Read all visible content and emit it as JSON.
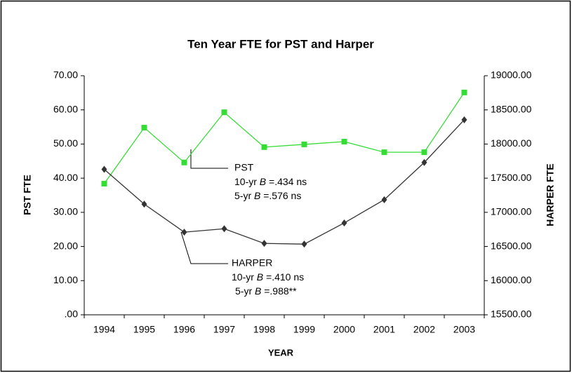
{
  "chart_data": {
    "type": "line",
    "title": "Ten Year FTE for PST and Harper",
    "xlabel": "YEAR",
    "ylabel": "PST FTE",
    "y2label": "HARPER FTE",
    "categories": [
      "1994",
      "1995",
      "1996",
      "1997",
      "1998",
      "1999",
      "2000",
      "2001",
      "2002",
      "2003"
    ],
    "series": [
      {
        "name": "PST",
        "color": "#33dd33",
        "marker": "square",
        "axis": "y",
        "values": [
          38.4,
          54.8,
          44.6,
          59.3,
          49.1,
          49.9,
          50.7,
          47.6,
          47.6,
          65.1
        ]
      },
      {
        "name": "HARPER",
        "color": "#333333",
        "marker": "diamond",
        "axis": "y2",
        "values": [
          17630,
          17120,
          16710,
          16760,
          16545,
          16535,
          16845,
          17185,
          17730,
          18355
        ]
      }
    ],
    "ylim": [
      0,
      70
    ],
    "yticks": [
      {
        "value": 0,
        "label": ".00"
      },
      {
        "value": 10,
        "label": "10.00"
      },
      {
        "value": 20,
        "label": "20.00"
      },
      {
        "value": 30,
        "label": "30.00"
      },
      {
        "value": 40,
        "label": "40.00"
      },
      {
        "value": 50,
        "label": "50.00"
      },
      {
        "value": 60,
        "label": "60.00"
      },
      {
        "value": 70,
        "label": "70.00"
      }
    ],
    "y2lim": [
      15500,
      19000
    ],
    "y2ticks": [
      {
        "value": 15500,
        "label": "15500.00"
      },
      {
        "value": 16000,
        "label": "16000.00"
      },
      {
        "value": 16500,
        "label": "16500.00"
      },
      {
        "value": 17000,
        "label": "17000.00"
      },
      {
        "value": 17500,
        "label": "17500.00"
      },
      {
        "value": 18000,
        "label": "18000.00"
      },
      {
        "value": 18500,
        "label": "18500.00"
      },
      {
        "value": 19000,
        "label": "19000.00"
      }
    ],
    "annotations": [
      {
        "label": "PST",
        "lines": [
          {
            "pre": "10-yr ",
            "b": "B",
            "post": " =.434 ns"
          },
          {
            "pre": "5-yr ",
            "b": "B",
            "post": " =.576 ns"
          }
        ]
      },
      {
        "label": "HARPER",
        "lines": [
          {
            "pre": "10-yr ",
            "b": "B",
            "post": " =.410 ns"
          },
          {
            "pre": "5-yr ",
            "b": "B",
            "post": " =.988**"
          }
        ]
      }
    ]
  }
}
